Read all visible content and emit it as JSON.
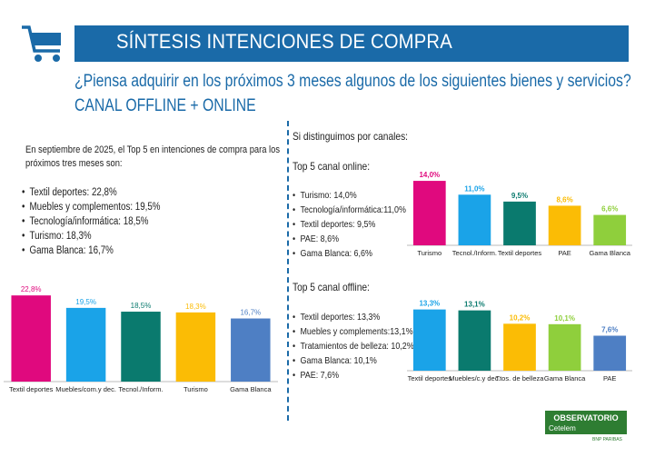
{
  "header": {
    "title": "SÍNTESIS INTENCIONES DE COMPRA",
    "question": "¿Piensa adquirir en los próximos 3 meses algunos de los siguientes bienes y servicios?",
    "subtitle": "CANAL OFFLINE + ONLINE",
    "accent": "#1a6aa8"
  },
  "left": {
    "intro_line1": "En septiembre de 2025, el Top 5 en intenciones de compra para los",
    "intro_line2": "próximos tres meses son:",
    "items": [
      "Textil deportes: 22,8%",
      "Muebles y complementos: 19,5%",
      "Tecnología/informática: 18,5%",
      "Turismo: 18,3%",
      "Gama Blanca: 16,7%"
    ]
  },
  "right": {
    "intro": "Si distinguimos por canales:",
    "online_title": "Top 5 canal online:",
    "online_items": [
      "Turismo: 14,0%",
      "Tecnología/informática:11,0%",
      "Textil deportes: 9,5%",
      "PAE: 8,6%",
      "Gama Blanca: 6,6%"
    ],
    "offline_title": "Top 5 canal offline:",
    "offline_items": [
      "Textil deportes: 13,3%",
      "Muebles y complements:13,1%",
      "Tratamientos de belleza: 10,2%",
      "Gama Blanca: 10,1%",
      "PAE: 7,6%"
    ]
  },
  "logo": {
    "brand": "OBSERVATORIO",
    "sub": "Cetelem",
    "tag": "BNP PARIBAS",
    "color": "#2e7d32"
  },
  "chart_data": [
    {
      "id": "total",
      "type": "bar",
      "title": "",
      "categories": [
        "Textil deportes",
        "Muebles/com.y dec.",
        "Tecnol./Inform.",
        "Turismo",
        "Gama Blanca"
      ],
      "values": [
        22.8,
        19.5,
        18.5,
        18.3,
        16.7
      ],
      "labels": [
        "22,8%",
        "19,5%",
        "18,5%",
        "18,3%",
        "16,7%"
      ],
      "colors": [
        "#e0097e",
        "#1aa3e8",
        "#0a7a6e",
        "#fbbc05",
        "#4e7fc4"
      ],
      "label_bold": false,
      "ylim": [
        0,
        25
      ]
    },
    {
      "id": "online",
      "type": "bar",
      "title": "",
      "categories": [
        "Turismo",
        "Tecnol./Inform.",
        "Textil deportes",
        "PAE",
        "Gama Blanca"
      ],
      "values": [
        14.0,
        11.0,
        9.5,
        8.6,
        6.6
      ],
      "labels": [
        "14,0%",
        "11,0%",
        "9,5%",
        "8,6%",
        "6,6%"
      ],
      "colors": [
        "#e0097e",
        "#1aa3e8",
        "#0a7a6e",
        "#fbbc05",
        "#8fcf3c"
      ],
      "label_bold": true,
      "ylim": [
        0,
        15
      ]
    },
    {
      "id": "offline",
      "type": "bar",
      "title": "",
      "categories": [
        "Textil deportes",
        "Muebles/c.y dec.",
        "Ttos. de belleza",
        "Gama Blanca",
        "PAE"
      ],
      "values": [
        13.3,
        13.1,
        10.2,
        10.1,
        7.6
      ],
      "labels": [
        "13,3%",
        "13,1%",
        "10,2%",
        "10,1%",
        "7,6%"
      ],
      "colors": [
        "#1aa3e8",
        "#0a7a6e",
        "#fbbc05",
        "#8fcf3c",
        "#4e7fc4"
      ],
      "label_bold": true,
      "ylim": [
        0,
        15
      ]
    }
  ]
}
